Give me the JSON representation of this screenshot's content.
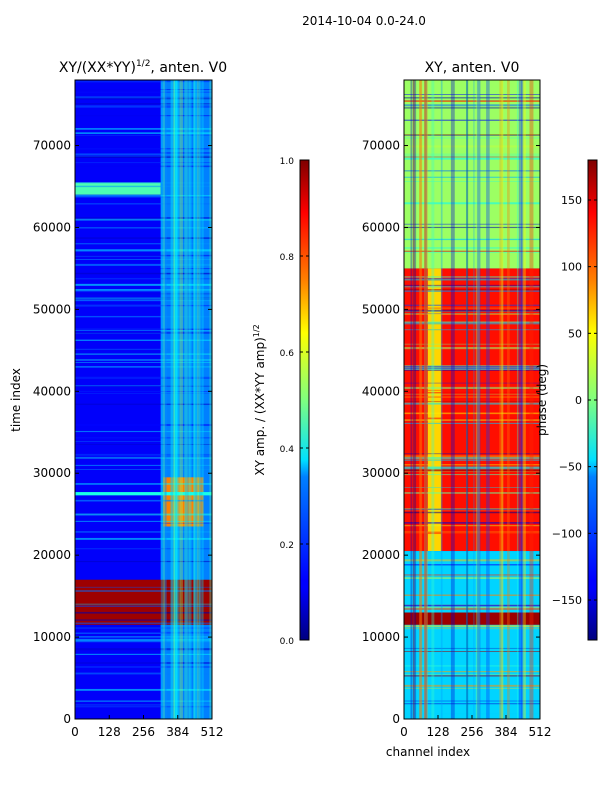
{
  "suptitle": "2014-10-04 0.0-24.0",
  "chart_data": [
    {
      "type": "heatmap",
      "title": "XY/(XX*YY)^1/2, anten. V0",
      "title_main": "XY/(XX*YY)",
      "title_exp": "1/2",
      "title_tail": ", anten. V0",
      "xlabel": "",
      "ylabel": "time index",
      "xlim": [
        0,
        512
      ],
      "ylim": [
        0,
        78000
      ],
      "x_ticks": [
        0,
        128,
        256,
        384,
        512
      ],
      "y_ticks": [
        0,
        10000,
        20000,
        30000,
        40000,
        50000,
        60000,
        70000
      ],
      "colorbar": {
        "label": "XY amp. / (XX*YY amp)^1/2",
        "label_main": "XY amp. / (XX*YY amp)",
        "label_exp": "1/2",
        "range": [
          0.0,
          1.0
        ],
        "ticks": [
          "0.0",
          "0.2",
          "0.4",
          "0.6",
          "0.8",
          "1.0"
        ],
        "tick_values": [
          0.0,
          0.2,
          0.4,
          0.6,
          0.8,
          1.0
        ]
      },
      "bands": [
        {
          "y0": 0,
          "y1": 78000,
          "x0": 0,
          "x1": 512,
          "value": 0.12
        },
        {
          "y0": 0,
          "y1": 78000,
          "x0": 320,
          "x1": 512,
          "value": 0.25
        },
        {
          "y0": 11500,
          "y1": 17000,
          "x0": 0,
          "x1": 512,
          "value": 0.97
        },
        {
          "y0": 23500,
          "y1": 29500,
          "x0": 330,
          "x1": 480,
          "value": 0.75
        },
        {
          "y0": 64000,
          "y1": 65500,
          "x0": 0,
          "x1": 320,
          "value": 0.45
        },
        {
          "y0": 27300,
          "y1": 27700,
          "x0": 0,
          "x1": 512,
          "value": 0.4
        }
      ]
    },
    {
      "type": "heatmap",
      "title": "XY, anten. V0",
      "xlabel": "channel index",
      "ylabel": "",
      "xlim": [
        0,
        512
      ],
      "ylim": [
        0,
        78000
      ],
      "x_ticks": [
        0,
        128,
        256,
        384,
        512
      ],
      "y_ticks": [
        0,
        10000,
        20000,
        30000,
        40000,
        50000,
        60000,
        70000
      ],
      "colorbar": {
        "label": "phase (deg)",
        "range": [
          -180,
          180
        ],
        "ticks": [
          "−150",
          "−100",
          "−50",
          "0",
          "50",
          "100",
          "150"
        ],
        "tick_values": [
          -150,
          -100,
          -50,
          0,
          50,
          100,
          150
        ]
      },
      "bands": [
        {
          "y0": 0,
          "y1": 78000,
          "x0": 0,
          "x1": 512,
          "value": -130
        },
        {
          "y0": 20500,
          "y1": 55000,
          "x0": 0,
          "x1": 512,
          "value": 130
        },
        {
          "y0": 20500,
          "y1": 55000,
          "x0": 90,
          "x1": 140,
          "value": 60
        },
        {
          "y0": 55000,
          "y1": 78000,
          "x0": 0,
          "x1": 512,
          "value": 10
        },
        {
          "y0": 0,
          "y1": 20500,
          "x0": 0,
          "x1": 512,
          "value": -60
        },
        {
          "y0": 11500,
          "y1": 13000,
          "x0": 0,
          "x1": 512,
          "value": 170
        }
      ]
    }
  ]
}
